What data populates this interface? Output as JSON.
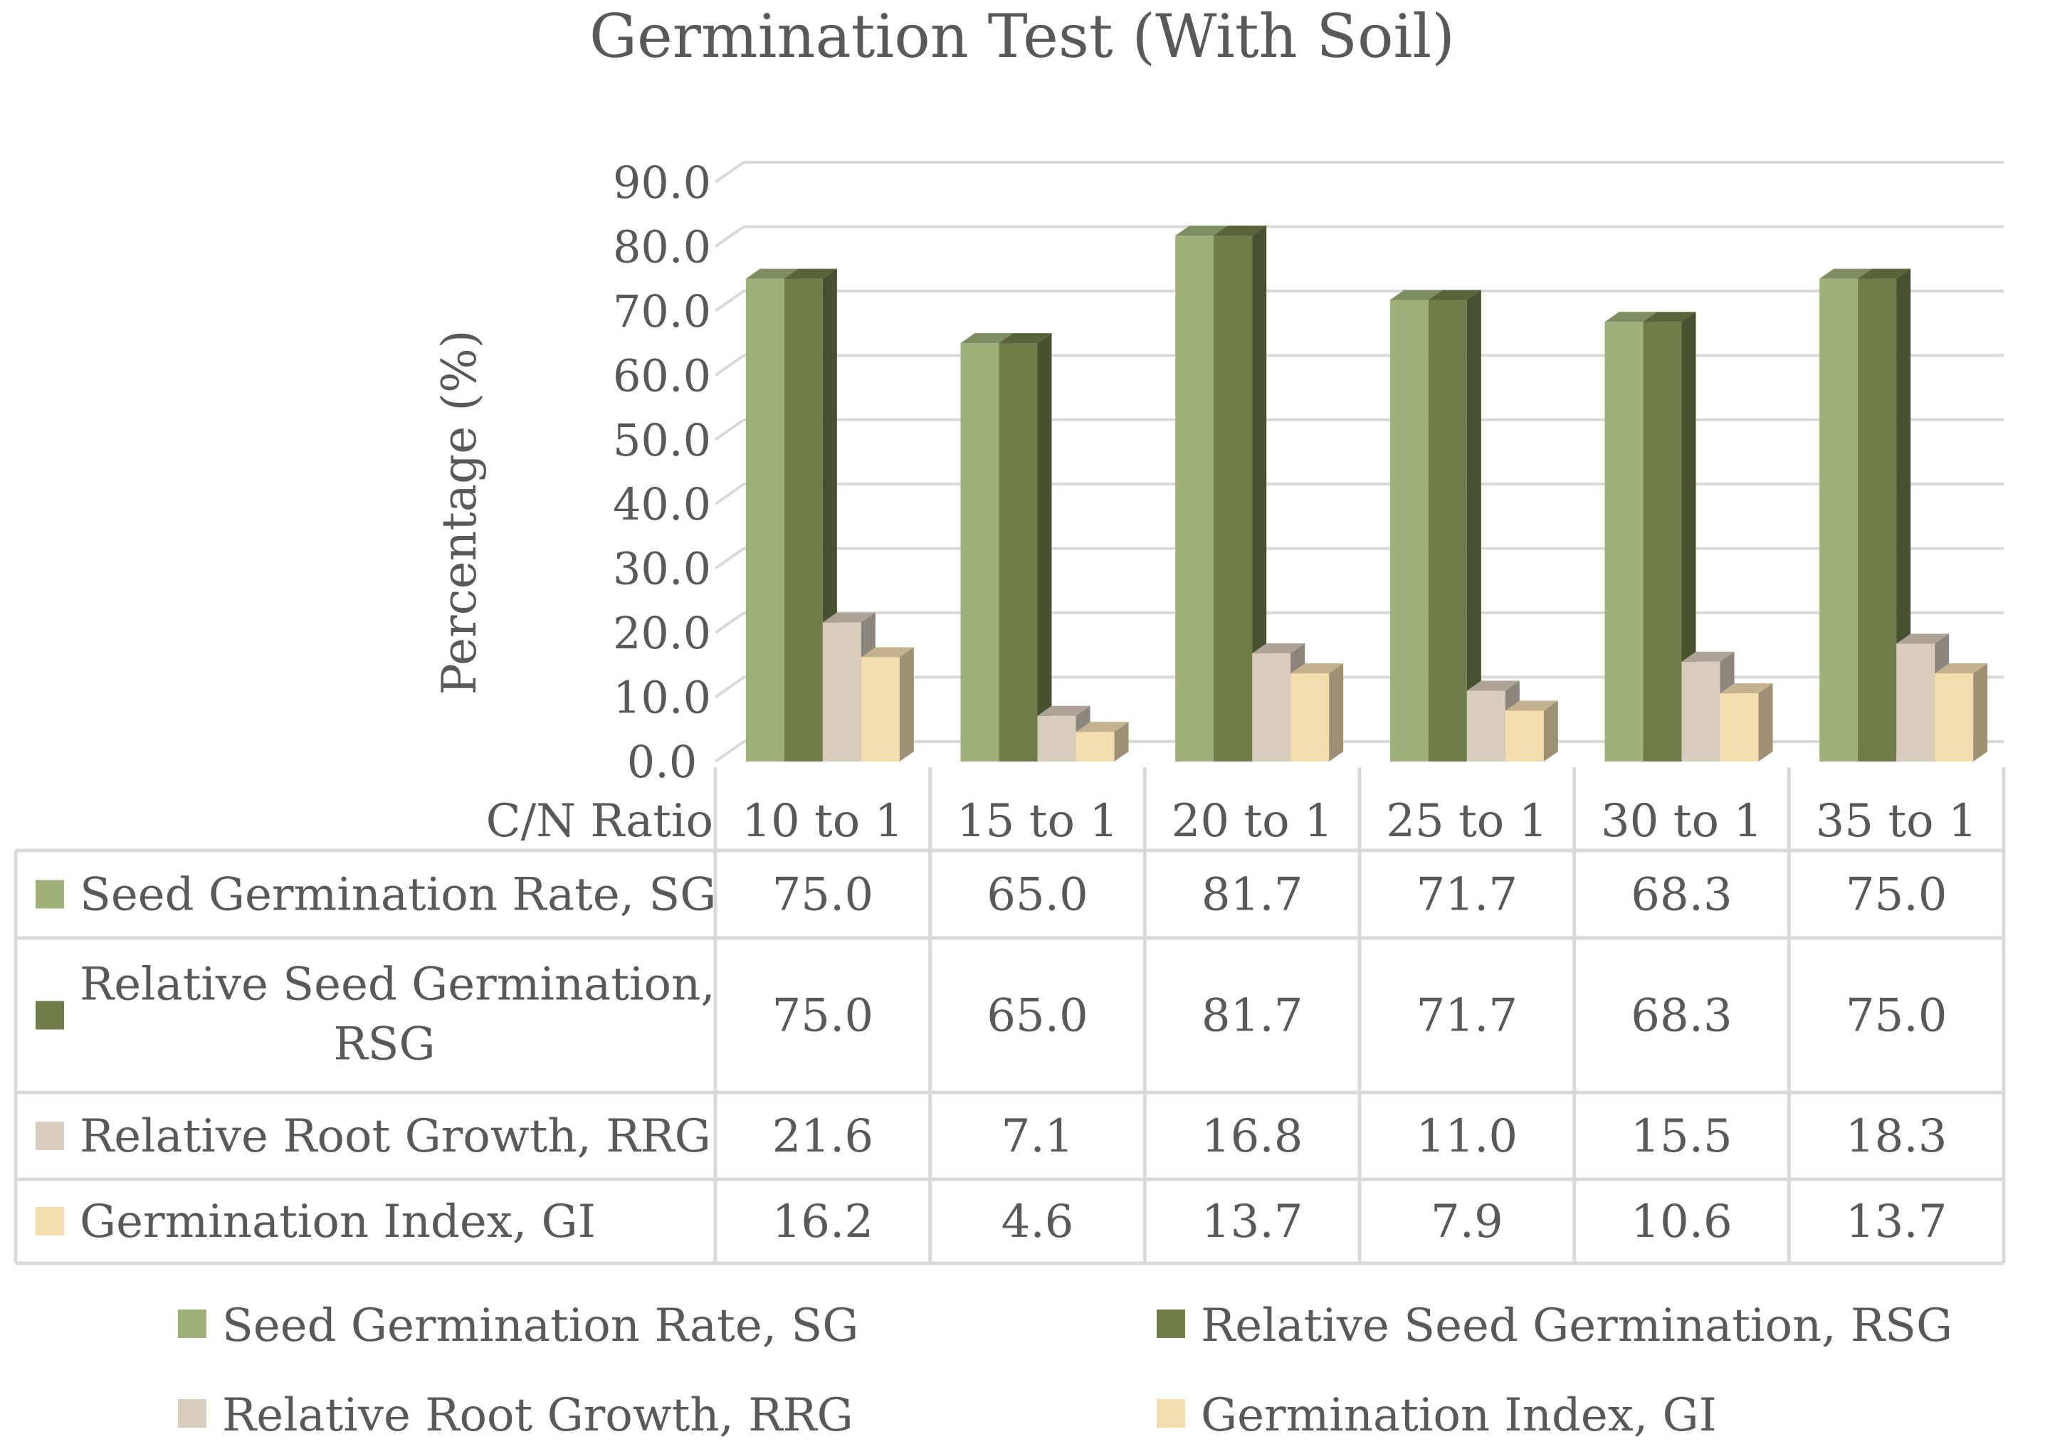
{
  "chart_data": {
    "type": "bar",
    "title": "Germination Test (With Soil)",
    "ylabel": "Percentage (%)",
    "table_corner_label": "C/N Ratio",
    "ylim": [
      0,
      90
    ],
    "ytick_step": 10,
    "ytick_labels": [
      "0.0",
      "10.0",
      "20.0",
      "30.0",
      "40.0",
      "50.0",
      "60.0",
      "70.0",
      "80.0",
      "90.0"
    ],
    "categories": [
      "10 to 1",
      "15 to 1",
      "20 to 1",
      "25 to 1",
      "30 to 1",
      "35 to 1"
    ],
    "series": [
      {
        "name": "Seed Germination Rate, SG",
        "table_label": [
          "Seed Germination Rate, SG"
        ],
        "color": "#9fb07a",
        "values": [
          75.0,
          65.0,
          81.7,
          71.7,
          68.3,
          75.0
        ]
      },
      {
        "name": "Relative Seed Germination, RSG",
        "table_label": [
          "Relative Seed Germination,",
          "RSG"
        ],
        "color": "#6e7d49",
        "values": [
          75.0,
          65.0,
          81.7,
          71.7,
          68.3,
          75.0
        ]
      },
      {
        "name": "Relative Root Growth, RRG",
        "table_label": [
          "Relative Root Growth, RRG"
        ],
        "color": "#d8cdbd",
        "values": [
          21.6,
          7.1,
          16.8,
          11.0,
          15.5,
          18.3
        ]
      },
      {
        "name": "Germination Index, GI",
        "table_label": [
          "Germination Index, GI"
        ],
        "color": "#f3deb0",
        "values": [
          16.2,
          4.6,
          13.7,
          7.9,
          10.6,
          13.7
        ]
      }
    ],
    "legend_position": "bottom",
    "data_table": true
  }
}
